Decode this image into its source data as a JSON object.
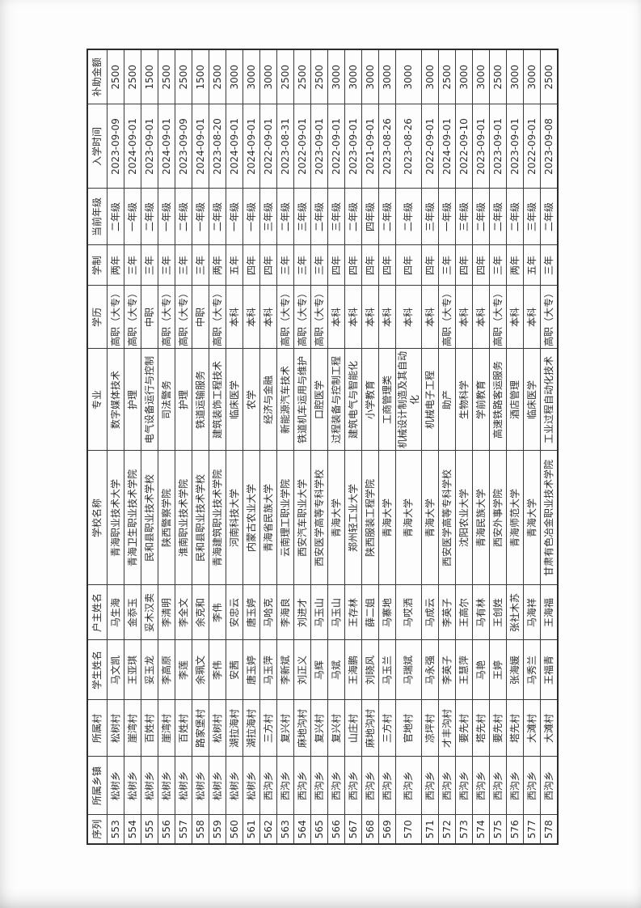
{
  "table": {
    "headers": [
      "序列",
      "所属乡镇",
      "所属村",
      "学生姓名",
      "户主姓名",
      "学校名称",
      "专业",
      "学历",
      "学制",
      "当前年级",
      "入学时间",
      "补助金额"
    ],
    "rows": [
      [
        "553",
        "松树乡",
        "松树村",
        "马文凯",
        "马生海",
        "青海职业技术大学",
        "数字媒体技术",
        "高职（大专）",
        "两年",
        "二年级",
        "2023-09-09",
        "2500"
      ],
      [
        "554",
        "松树乡",
        "崖湾村",
        "王亚琪",
        "金忝玉",
        "青海卫生职业技术学院",
        "护理",
        "高职（大专）",
        "三年",
        "一年级",
        "2024-09-01",
        "2500"
      ],
      [
        "555",
        "松树乡",
        "百姓村",
        "妥玉龙",
        "妥木汉卖",
        "民和县职业技术学校",
        "电气设备运行与控制",
        "中职",
        "三年",
        "二年级",
        "2023-09-01",
        "1500"
      ],
      [
        "556",
        "松树乡",
        "崖湾村",
        "李高原",
        "李清明",
        "陕西警察学院",
        "司法警务",
        "高职（大专）",
        "三年",
        "一年级",
        "2024-09-01",
        "2500"
      ],
      [
        "557",
        "松树乡",
        "百姓村",
        "李莲",
        "李全文",
        "淮南职业技术学院",
        "护理",
        "高职（大专）",
        "三年",
        "二年级",
        "2023-09-09",
        "2500"
      ],
      [
        "558",
        "松树乡",
        "路家堡村",
        "余珮文",
        "余克和",
        "民和县职业技术学校",
        "铁道运输服务",
        "中职",
        "三年",
        "一年级",
        "2024-09-01",
        "1500"
      ],
      [
        "559",
        "松树乡",
        "松树村",
        "李伟",
        "李伟",
        "青海建筑职业技术学院",
        "建筑装饰工程技术",
        "高职（大专）",
        "两年",
        "二年级",
        "2023-08-20",
        "2500"
      ],
      [
        "560",
        "松树乡",
        "湖拉海村",
        "安茜",
        "安忠云",
        "河南科技大学",
        "临床医学",
        "本科",
        "五年",
        "一年级",
        "2024-09-01",
        "3000"
      ],
      [
        "561",
        "松树乡",
        "湖拉海村",
        "唐玉婷",
        "唐玉婷",
        "内蒙古农业大学",
        "农学",
        "本科",
        "四年",
        "一年级",
        "2024-09-01",
        "3000"
      ],
      [
        "562",
        "西沟乡",
        "三方村",
        "马玉萍",
        "马哈克",
        "青海省民族大学",
        "经济与金融",
        "本科",
        "四年",
        "三年级",
        "2022-09-01",
        "3000"
      ],
      [
        "563",
        "西沟乡",
        "复兴村",
        "李新斌",
        "李海良",
        "云南理工职业学院",
        "新能源汽车技术",
        "高职（大专）",
        "三年",
        "二年级",
        "2023-08-31",
        "2500"
      ],
      [
        "564",
        "西沟乡",
        "麻地沟村",
        "刘正义",
        "刘进才",
        "西安汽车职业大学",
        "铁道机车运用与维护",
        "高职（大专）",
        "三年",
        "三年级",
        "2022-09-01",
        "2500"
      ],
      [
        "565",
        "西沟乡",
        "复兴村",
        "马辉",
        "马玉山",
        "西安医学高等专科学校",
        "口腔医学",
        "高职（大专）",
        "三年",
        "二年级",
        "2023-09-01",
        "2500"
      ],
      [
        "566",
        "西沟乡",
        "复兴村",
        "马斌",
        "马玉山",
        "青海大学",
        "过程装备与控制工程",
        "本科",
        "四年",
        "三年级",
        "2022-09-01",
        "3000"
      ],
      [
        "567",
        "西沟乡",
        "山庄村",
        "王海鹏",
        "王存林",
        "郑州轻工业大学",
        "建筑电气与智能化",
        "本科",
        "四年",
        "二年级",
        "2023-09-01",
        "3000"
      ],
      [
        "568",
        "西沟乡",
        "麻地沟村",
        "刘晓风",
        "薛二姐",
        "陕西服装工程学院",
        "小学教育",
        "本科",
        "四年",
        "四年级",
        "2021-09-01",
        "3000"
      ],
      [
        "569",
        "西沟乡",
        "三方村",
        "马玉兰",
        "马寨地",
        "青海大学",
        "工商管理类",
        "本科",
        "四年",
        "二年级",
        "2023-08-26",
        "3000"
      ],
      [
        "570",
        "西沟乡",
        "官地村",
        "马瑞斌",
        "马哎洒",
        "青海大学",
        "机械设计制造及其自动化",
        "本科",
        "四年",
        "二年级",
        "2023-08-26",
        "3000"
      ],
      [
        "571",
        "西沟乡",
        "凉坪村",
        "马永强",
        "马成云",
        "青海大学",
        "机械电子工程",
        "本科",
        "四年",
        "三年级",
        "2022-09-01",
        "3000"
      ],
      [
        "572",
        "西沟乡",
        "才丰沟村",
        "李英子",
        "李英子",
        "西安医学高等专科学校",
        "助产",
        "高职（大专）",
        "三年",
        "一年级",
        "2024-09-01",
        "2500"
      ],
      [
        "573",
        "西沟乡",
        "要先村",
        "王慧萍",
        "王高尔",
        "沈阳农业大学",
        "生物科学",
        "本科",
        "四年",
        "三年级",
        "2022-09-10",
        "3000"
      ],
      [
        "574",
        "西沟乡",
        "塔先村",
        "马艳",
        "马有林",
        "青海民族大学",
        "学前教育",
        "本科",
        "四年",
        "二年级",
        "2023-09-01",
        "3000"
      ],
      [
        "575",
        "西沟乡",
        "要先村",
        "王婷",
        "王创姓",
        "西安外事学院",
        "高速铁路客运服务",
        "高职（大专）",
        "三年",
        "二年级",
        "2023-09-01",
        "2500"
      ],
      [
        "576",
        "西沟乡",
        "塔先村",
        "张海媛",
        "张社木苏",
        "青海师范大学",
        "酒店管理",
        "本科",
        "两年",
        "二年级",
        "2023-09-01",
        "3000"
      ],
      [
        "577",
        "西沟乡",
        "大滩村",
        "马秀兰",
        "马海祥",
        "青海大学",
        "临床医学",
        "本科",
        "五年",
        "三年级",
        "2022-09-01",
        "3000"
      ],
      [
        "578",
        "西沟乡",
        "大滩村",
        "王福青",
        "王海福",
        "甘肃有色冶金职业技术学院",
        "工业过程自动化技术",
        "高职（大专）",
        "三年",
        "二年级",
        "2023-09-08",
        "2500"
      ]
    ]
  }
}
